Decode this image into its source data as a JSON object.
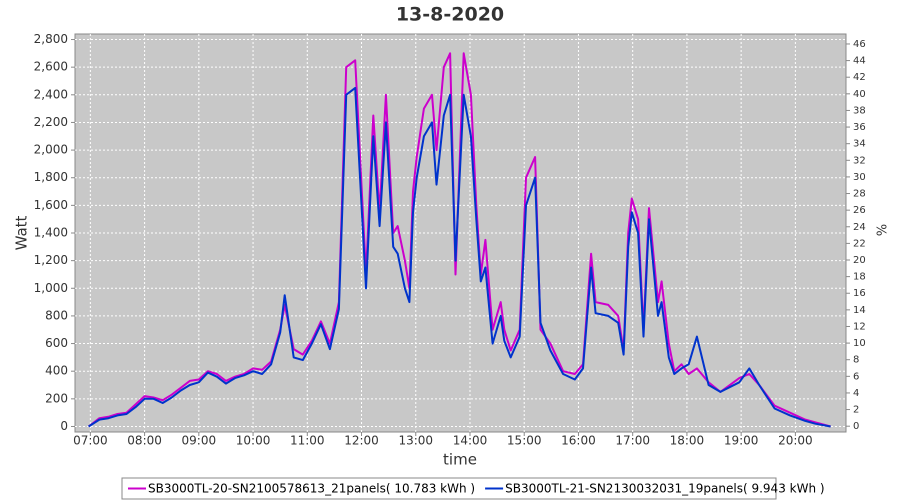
{
  "chart_data": {
    "type": "line",
    "title": "13-8-2020",
    "x_label": "time",
    "y_label": "Watt",
    "y2_label": "%",
    "x": [
      "06:58",
      "07:10",
      "07:20",
      "07:30",
      "07:40",
      "07:50",
      "08:00",
      "08:10",
      "08:20",
      "08:30",
      "08:40",
      "08:50",
      "09:00",
      "09:10",
      "09:20",
      "09:30",
      "09:40",
      "09:50",
      "10:00",
      "10:10",
      "10:20",
      "10:30",
      "10:35",
      "10:45",
      "10:55",
      "11:05",
      "11:15",
      "11:25",
      "11:35",
      "11:43",
      "11:53",
      "12:05",
      "12:13",
      "12:20",
      "12:27",
      "12:35",
      "12:40",
      "12:48",
      "12:53",
      "12:57",
      "13:01",
      "13:09",
      "13:18",
      "13:23",
      "13:31",
      "13:38",
      "13:44",
      "13:53",
      "14:01",
      "14:07",
      "14:12",
      "14:17",
      "14:25",
      "14:34",
      "14:38",
      "14:45",
      "14:55",
      "15:02",
      "15:12",
      "15:18",
      "15:29",
      "15:43",
      "15:56",
      "16:05",
      "16:14",
      "16:19",
      "16:33",
      "16:44",
      "16:50",
      "16:55",
      "16:59",
      "17:06",
      "17:12",
      "17:18",
      "17:28",
      "17:32",
      "17:40",
      "17:46",
      "17:54",
      "18:02",
      "18:11",
      "18:24",
      "18:37",
      "18:58",
      "19:09",
      "19:20",
      "19:37",
      "19:54",
      "20:11",
      "20:22",
      "20:39"
    ],
    "series": [
      {
        "name": "SB3000TL-20-SN2100578613_21panels( 10.783 kWh )",
        "color": "#cc00cc",
        "values": [
          0,
          60,
          70,
          90,
          100,
          160,
          220,
          210,
          190,
          230,
          280,
          330,
          340,
          400,
          380,
          330,
          360,
          380,
          420,
          410,
          470,
          700,
          880,
          560,
          520,
          620,
          760,
          600,
          900,
          2600,
          2650,
          1100,
          2250,
          1550,
          2400,
          1400,
          1450,
          1200,
          1000,
          1700,
          1950,
          2300,
          2400,
          2000,
          2600,
          2700,
          1100,
          2700,
          2400,
          1600,
          1100,
          1350,
          700,
          900,
          700,
          550,
          700,
          1800,
          1950,
          700,
          600,
          400,
          380,
          450,
          1250,
          900,
          880,
          800,
          550,
          1400,
          1650,
          1500,
          700,
          1580,
          900,
          1050,
          600,
          400,
          450,
          380,
          420,
          320,
          250,
          350,
          380,
          300,
          150,
          100,
          50,
          30,
          0
        ]
      },
      {
        "name": "SB3000TL-21-SN2130032031_19panels( 9.943 kWh )",
        "color": "#0033cc",
        "values": [
          0,
          50,
          60,
          80,
          90,
          140,
          200,
          200,
          170,
          210,
          260,
          300,
          320,
          390,
          360,
          310,
          350,
          370,
          400,
          380,
          450,
          680,
          950,
          500,
          480,
          600,
          740,
          560,
          850,
          2400,
          2450,
          1000,
          2100,
          1450,
          2200,
          1300,
          1250,
          1000,
          900,
          1550,
          1800,
          2100,
          2200,
          1750,
          2250,
          2400,
          1200,
          2400,
          2100,
          1500,
          1050,
          1150,
          600,
          800,
          620,
          500,
          650,
          1600,
          1800,
          750,
          550,
          380,
          340,
          420,
          1150,
          820,
          800,
          750,
          520,
          1300,
          1550,
          1400,
          650,
          1500,
          800,
          900,
          500,
          380,
          420,
          450,
          650,
          300,
          250,
          320,
          420,
          300,
          130,
          80,
          40,
          20,
          0
        ]
      }
    ],
    "xlim": [
      "06:43",
      "20:56"
    ],
    "xticks": [
      "07:00",
      "08:00",
      "09:00",
      "10:00",
      "11:00",
      "12:00",
      "13:00",
      "14:00",
      "15:00",
      "16:00",
      "17:00",
      "18:00",
      "19:00",
      "20:00"
    ],
    "ylim": [
      -40,
      2840
    ],
    "yticks": [
      0,
      200,
      400,
      600,
      800,
      {
        "value": 1000,
        "label": "1,000"
      },
      {
        "value": 1200,
        "label": "1,200"
      },
      {
        "value": 1400,
        "label": "1,400"
      },
      {
        "value": 1600,
        "label": "1,600"
      },
      {
        "value": 1800,
        "label": "1,800"
      },
      {
        "value": 2000,
        "label": "2,000"
      },
      {
        "value": 2200,
        "label": "2,200"
      },
      {
        "value": 2400,
        "label": "2,400"
      },
      {
        "value": 2600,
        "label": "2,600"
      },
      {
        "value": 2800,
        "label": "2,800"
      }
    ],
    "y2lim": [
      -0.7,
      47.2
    ],
    "y2ticks": [
      0,
      2,
      4,
      6,
      8,
      10,
      12,
      14,
      16,
      18,
      20,
      22,
      24,
      26,
      28,
      30,
      32,
      34,
      36,
      38,
      40,
      42,
      44,
      46
    ],
    "grid": true,
    "legend": "bottom"
  }
}
